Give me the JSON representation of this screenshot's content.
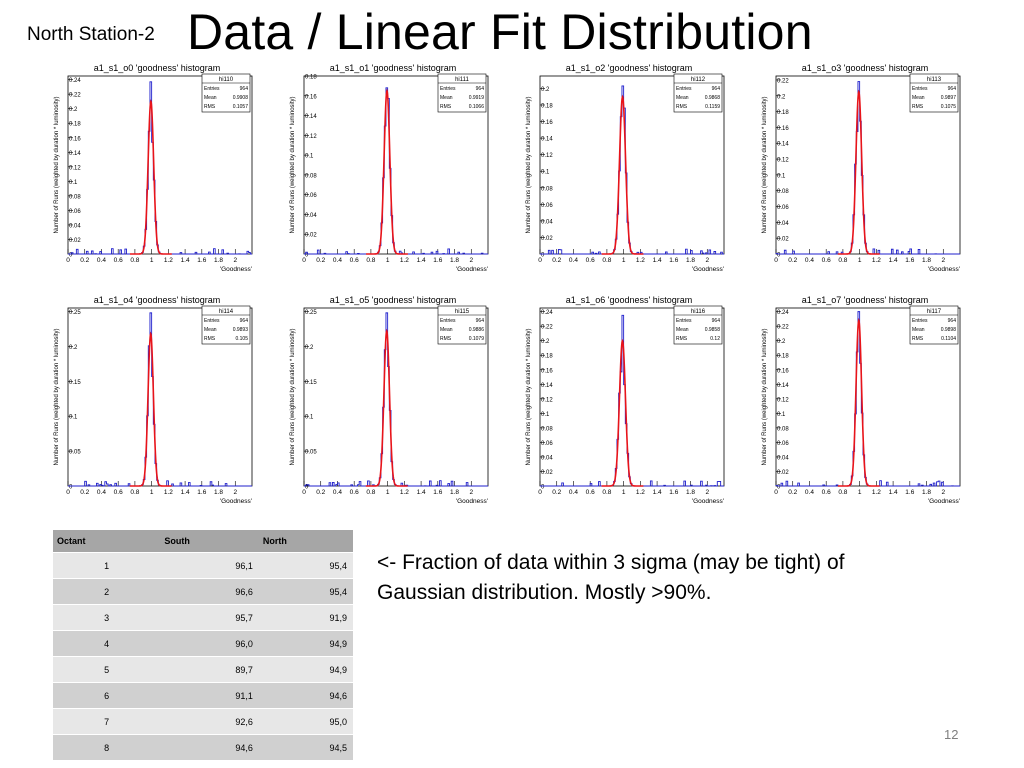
{
  "slide": {
    "subtitle": "North Station-2",
    "title": "Data / Linear Fit Distribution",
    "note": "<- Fraction of data within 3 sigma (may be tight) of Gaussian distribution. Mostly >90%.",
    "page_number": "12"
  },
  "colors": {
    "histogram": "#1f1fcc",
    "fit": "#e8141a",
    "text": "#000000"
  },
  "table": {
    "headers": [
      "Octant",
      "South",
      "North"
    ],
    "rows": [
      [
        "1",
        "96,1",
        "95,4"
      ],
      [
        "2",
        "96,6",
        "95,4"
      ],
      [
        "3",
        "95,7",
        "91,9"
      ],
      [
        "4",
        "96,0",
        "94,9"
      ],
      [
        "5",
        "89,7",
        "94,9"
      ],
      [
        "6",
        "91,1",
        "94,6"
      ],
      [
        "7",
        "92,6",
        "95,0"
      ],
      [
        "8",
        "94,6",
        "94,5"
      ]
    ]
  },
  "chart_data": [
    {
      "type": "histogram",
      "title": "a1_s1_o0 'goodness' histogram",
      "xlabel": "'Goodness'",
      "ylabel": "Number of Runs (weighted by duration * luminosity)",
      "xlim": [
        0,
        2.2
      ],
      "ylim": [
        0,
        0.245
      ],
      "xticks": [
        0,
        0.2,
        0.4,
        0.6,
        0.8,
        1,
        1.2,
        1.4,
        1.6,
        1.8,
        2
      ],
      "xtick_labels": [
        "0",
        "0.2",
        "0.4",
        "0.6",
        "0.8",
        "1",
        "1.2",
        "1.4",
        "1.6",
        "1.8",
        "2"
      ],
      "yticks": [
        0,
        0.02,
        0.04,
        0.06,
        0.08,
        0.1,
        0.12,
        0.14,
        0.16,
        0.18,
        0.2,
        0.22,
        0.24
      ],
      "ytick_labels": [
        "0",
        "0.02",
        "0.04",
        "0.06",
        "0.08",
        "0.1",
        "0.12",
        "0.14",
        "0.16",
        "0.18",
        "0.2",
        "0.22",
        "0.24"
      ],
      "stats": {
        "name": "hi110",
        "entries": "964",
        "mean": "0.9908",
        "rms": "0.1057"
      },
      "peak": 0.237,
      "fit_peak": 0.21,
      "mean": 0.991,
      "sigma": 0.033
    },
    {
      "type": "histogram",
      "title": "a1_s1_o1 'goodness' histogram",
      "xlabel": "'Goodness'",
      "ylabel": "Number of Runs (weighted by duration * luminosity)",
      "xlim": [
        0,
        2.2
      ],
      "ylim": [
        0,
        0.18
      ],
      "xticks": [
        0,
        0.2,
        0.4,
        0.6,
        0.8,
        1,
        1.2,
        1.4,
        1.6,
        1.8,
        2
      ],
      "xtick_labels": [
        "0",
        "0.2",
        "0.4",
        "0.6",
        "0.8",
        "1",
        "1.2",
        "1.4",
        "1.6",
        "1.8",
        "2"
      ],
      "yticks": [
        0,
        0.02,
        0.04,
        0.06,
        0.08,
        0.1,
        0.12,
        0.14,
        0.16,
        0.18
      ],
      "ytick_labels": [
        "0",
        "0.02",
        "0.04",
        "0.06",
        "0.08",
        "0.1",
        "0.12",
        "0.14",
        "0.16",
        "0.18"
      ],
      "stats": {
        "name": "hi111",
        "entries": "964",
        "mean": "0.9919",
        "rms": "0.1066"
      },
      "peak": 0.168,
      "fit_peak": 0.165,
      "mean": 0.992,
      "sigma": 0.034
    },
    {
      "type": "histogram",
      "title": "a1_s1_o2 'goodness' histogram",
      "xlabel": "'Goodness'",
      "ylabel": "Number of Runs (weighted by duration * luminosity)",
      "xlim": [
        0,
        2.2
      ],
      "ylim": [
        0,
        0.215
      ],
      "xticks": [
        0,
        0.2,
        0.4,
        0.6,
        0.8,
        1,
        1.2,
        1.4,
        1.6,
        1.8,
        2
      ],
      "xtick_labels": [
        "0",
        "0.2",
        "0.4",
        "0.6",
        "0.8",
        "1",
        "1.2",
        "1.4",
        "1.6",
        "1.8",
        "2"
      ],
      "yticks": [
        0,
        0.02,
        0.04,
        0.06,
        0.08,
        0.1,
        0.12,
        0.14,
        0.16,
        0.18,
        0.2
      ],
      "ytick_labels": [
        "0",
        "0.02",
        "0.04",
        "0.06",
        "0.08",
        "0.1",
        "0.12",
        "0.14",
        "0.16",
        "0.18",
        "0.2"
      ],
      "stats": {
        "name": "hi112",
        "entries": "964",
        "mean": "0.9868",
        "rms": "0.1159"
      },
      "peak": 0.203,
      "fit_peak": 0.19,
      "mean": 0.987,
      "sigma": 0.036
    },
    {
      "type": "histogram",
      "title": "a1_s1_o3 'goodness' histogram",
      "xlabel": "'Goodness'",
      "ylabel": "Number of Runs (weighted by duration * luminosity)",
      "xlim": [
        0,
        2.2
      ],
      "ylim": [
        0,
        0.225
      ],
      "xticks": [
        0,
        0.2,
        0.4,
        0.6,
        0.8,
        1,
        1.2,
        1.4,
        1.6,
        1.8,
        2
      ],
      "xtick_labels": [
        "0",
        "0.2",
        "0.4",
        "0.6",
        "0.8",
        "1",
        "1.2",
        "1.4",
        "1.6",
        "1.8",
        "2"
      ],
      "yticks": [
        0,
        0.02,
        0.04,
        0.06,
        0.08,
        0.1,
        0.12,
        0.14,
        0.16,
        0.18,
        0.2,
        0.22
      ],
      "ytick_labels": [
        "0",
        "0.02",
        "0.04",
        "0.06",
        "0.08",
        "0.1",
        "0.12",
        "0.14",
        "0.16",
        "0.18",
        "0.2",
        "0.22"
      ],
      "stats": {
        "name": "hi113",
        "entries": "964",
        "mean": "0.9897",
        "rms": "0.1075"
      },
      "peak": 0.218,
      "fit_peak": 0.205,
      "mean": 0.99,
      "sigma": 0.034
    },
    {
      "type": "histogram",
      "title": "a1_s1_o4 'goodness' histogram",
      "xlabel": "'Goodness'",
      "ylabel": "Number of Runs (weighted by duration * luminosity)",
      "xlim": [
        0,
        2.2
      ],
      "ylim": [
        0,
        0.255
      ],
      "xticks": [
        0,
        0.2,
        0.4,
        0.6,
        0.8,
        1,
        1.2,
        1.4,
        1.6,
        1.8,
        2
      ],
      "xtick_labels": [
        "0",
        "0.2",
        "0.4",
        "0.6",
        "0.8",
        "1",
        "1.2",
        "1.4",
        "1.6",
        "1.8",
        "2"
      ],
      "yticks": [
        0,
        0.05,
        0.1,
        0.15,
        0.2,
        0.25
      ],
      "ytick_labels": [
        "0",
        "0.05",
        "0.1",
        "0.15",
        "0.2",
        "0.25"
      ],
      "stats": {
        "name": "hi114",
        "entries": "964",
        "mean": "0.9893",
        "rms": "0.105"
      },
      "peak": 0.248,
      "fit_peak": 0.218,
      "mean": 0.989,
      "sigma": 0.032
    },
    {
      "type": "histogram",
      "title": "a1_s1_o5 'goodness' histogram",
      "xlabel": "'Goodness'",
      "ylabel": "Number of Runs (weighted by duration * luminosity)",
      "xlim": [
        0,
        2.2
      ],
      "ylim": [
        0,
        0.255
      ],
      "xticks": [
        0,
        0.2,
        0.4,
        0.6,
        0.8,
        1,
        1.2,
        1.4,
        1.6,
        1.8,
        2
      ],
      "xtick_labels": [
        "0",
        "0.2",
        "0.4",
        "0.6",
        "0.8",
        "1",
        "1.2",
        "1.4",
        "1.6",
        "1.8",
        "2"
      ],
      "yticks": [
        0,
        0.05,
        0.1,
        0.15,
        0.2,
        0.25
      ],
      "ytick_labels": [
        "0",
        "0.05",
        "0.1",
        "0.15",
        "0.2",
        "0.25"
      ],
      "stats": {
        "name": "hi115",
        "entries": "964",
        "mean": "0.9886",
        "rms": "0.1079"
      },
      "peak": 0.248,
      "fit_peak": 0.222,
      "mean": 0.989,
      "sigma": 0.033
    },
    {
      "type": "histogram",
      "title": "a1_s1_o6 'goodness' histogram",
      "xlabel": "'Goodness'",
      "ylabel": "Number of Runs (weighted by duration * luminosity)",
      "xlim": [
        0,
        2.2
      ],
      "ylim": [
        0,
        0.245
      ],
      "xticks": [
        0,
        0.2,
        0.4,
        0.6,
        0.8,
        1,
        1.2,
        1.4,
        1.6,
        1.8,
        2
      ],
      "xtick_labels": [
        "0",
        "0.2",
        "0.4",
        "0.6",
        "0.8",
        "1",
        "1.2",
        "1.4",
        "1.6",
        "1.8",
        "2"
      ],
      "yticks": [
        0,
        0.02,
        0.04,
        0.06,
        0.08,
        0.1,
        0.12,
        0.14,
        0.16,
        0.18,
        0.2,
        0.22,
        0.24
      ],
      "ytick_labels": [
        "0",
        "0.02",
        "0.04",
        "0.06",
        "0.08",
        "0.1",
        "0.12",
        "0.14",
        "0.16",
        "0.18",
        "0.2",
        "0.22",
        "0.24"
      ],
      "stats": {
        "name": "hi116",
        "entries": "964",
        "mean": "0.9858",
        "rms": "0.12"
      },
      "peak": 0.235,
      "fit_peak": 0.2,
      "mean": 0.986,
      "sigma": 0.036
    },
    {
      "type": "histogram",
      "title": "a1_s1_o7 'goodness' histogram",
      "xlabel": "'Goodness'",
      "ylabel": "Number of Runs (weighted by duration * luminosity)",
      "xlim": [
        0,
        2.2
      ],
      "ylim": [
        0,
        0.245
      ],
      "xticks": [
        0,
        0.2,
        0.4,
        0.6,
        0.8,
        1,
        1.2,
        1.4,
        1.6,
        1.8,
        2
      ],
      "xtick_labels": [
        "0",
        "0.2",
        "0.4",
        "0.6",
        "0.8",
        "1",
        "1.2",
        "1.4",
        "1.6",
        "1.8",
        "2"
      ],
      "yticks": [
        0,
        0.02,
        0.04,
        0.06,
        0.08,
        0.1,
        0.12,
        0.14,
        0.16,
        0.18,
        0.2,
        0.22,
        0.24
      ],
      "ytick_labels": [
        "0",
        "0.02",
        "0.04",
        "0.06",
        "0.08",
        "0.1",
        "0.12",
        "0.14",
        "0.16",
        "0.18",
        "0.2",
        "0.22",
        "0.24"
      ],
      "stats": {
        "name": "hi117",
        "entries": "964",
        "mean": "0.9898",
        "rms": "0.1104"
      },
      "peak": 0.24,
      "fit_peak": 0.228,
      "mean": 0.99,
      "sigma": 0.033
    }
  ]
}
